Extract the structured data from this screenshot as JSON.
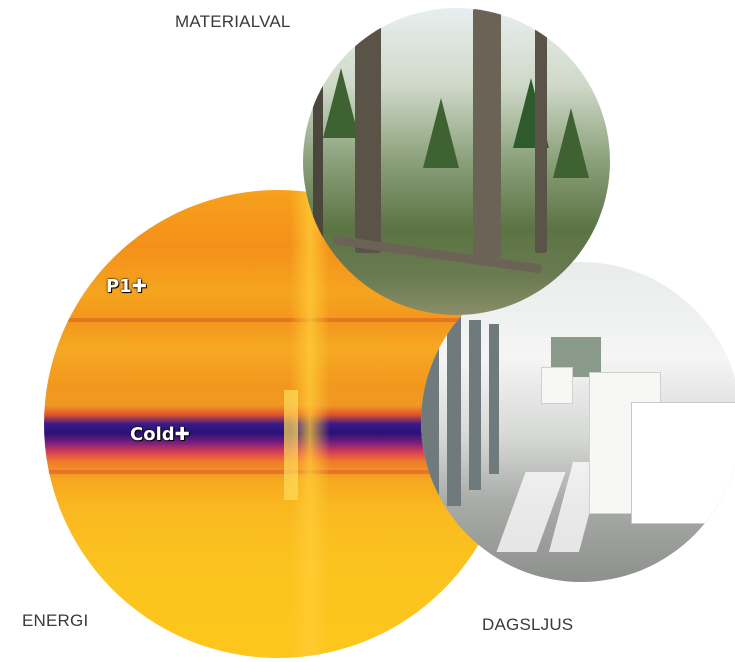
{
  "labels": {
    "top": "MATERIALVAL",
    "left": "ENERGI",
    "right": "DAGSLJUS"
  },
  "thermal_markers": {
    "p1": "P1✚",
    "cold": "Cold✚"
  },
  "colors": {
    "label_text": "#3a3a3a",
    "thermal_warm": "#fcc51e",
    "thermal_cold": "#2a1275"
  }
}
